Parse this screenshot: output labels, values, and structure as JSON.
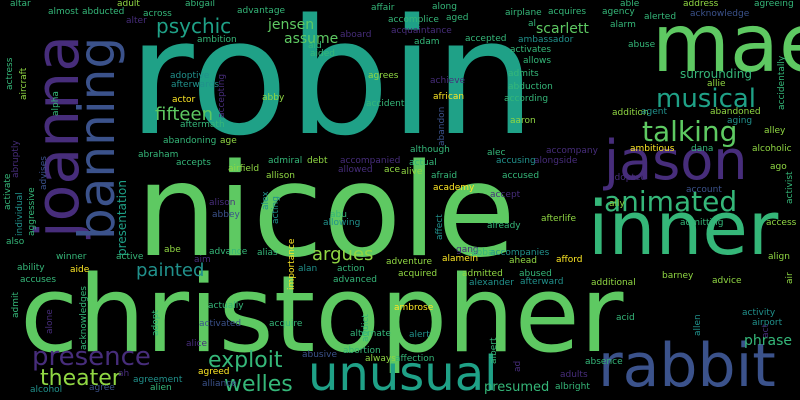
{
  "palette": {
    "c1": "#1fa187",
    "c2": "#35b779",
    "c3": "#5ec962",
    "c4": "#440154",
    "c5": "#3b528b",
    "c6": "#2c728e",
    "c7": "#21918c",
    "c8": "#fde725",
    "c9": "#90d743",
    "c10": "#472d7b"
  },
  "words": [
    {
      "id": "robin",
      "text": "robin",
      "color": "#1fa187"
    },
    {
      "id": "nicole",
      "text": "nicole",
      "color": "#5ec962"
    },
    {
      "id": "christopher",
      "text": "christopher",
      "color": "#5ec962"
    },
    {
      "id": "mae",
      "text": "mae",
      "color": "#5ec962"
    },
    {
      "id": "inner",
      "text": "inner",
      "color": "#35b779"
    },
    {
      "id": "joanna",
      "text": "joanna",
      "color": "#472d7b"
    },
    {
      "id": "banning",
      "text": "banning",
      "color": "#3b528b"
    },
    {
      "id": "jason",
      "text": "jason",
      "color": "#472d7b"
    },
    {
      "id": "rabbit",
      "text": "rabbit",
      "color": "#3b528b"
    },
    {
      "id": "unusual",
      "text": "unusual",
      "color": "#1fa187"
    },
    {
      "id": "animated",
      "text": "animated",
      "color": "#35b779"
    },
    {
      "id": "talking",
      "text": "talking",
      "color": "#5ec962"
    },
    {
      "id": "musical",
      "text": "musical",
      "color": "#1fa187"
    },
    {
      "id": "presence",
      "text": "presence",
      "color": "#472d7b"
    },
    {
      "id": "exploit",
      "text": "exploit",
      "color": "#35b779"
    },
    {
      "id": "theater",
      "text": "theater",
      "color": "#90d743"
    },
    {
      "id": "welles",
      "text": "welles",
      "color": "#35b779"
    },
    {
      "id": "painted",
      "text": "painted",
      "color": "#21918c"
    },
    {
      "id": "argues",
      "text": "argues",
      "color": "#90d743"
    },
    {
      "id": "fifteen",
      "text": "fifteen",
      "color": "#5ec962"
    },
    {
      "id": "psychic",
      "text": "psychic",
      "color": "#1fa187"
    },
    {
      "id": "scarlett",
      "text": "scarlett",
      "color": "#5ec962"
    },
    {
      "id": "jensen",
      "text": "jensen",
      "color": "#5ec962"
    },
    {
      "id": "assume",
      "text": "assume",
      "color": "#5ec962"
    },
    {
      "id": "surrounding",
      "text": "surrounding",
      "color": "#35b779"
    },
    {
      "id": "phrase",
      "text": "phrase",
      "color": "#35b779"
    },
    {
      "id": "presumed",
      "text": "presumed",
      "color": "#35b779"
    },
    {
      "id": "presentation",
      "text": "presentation",
      "color": "#1fa187"
    },
    {
      "id": "abduction",
      "text": "abduction",
      "color": "#35b779"
    },
    {
      "id": "according",
      "text": "according",
      "color": "#35b779"
    },
    {
      "id": "accident",
      "text": "accident",
      "color": "#35b779"
    },
    {
      "id": "african",
      "text": "african",
      "color": "#fde725"
    },
    {
      "id": "addition",
      "text": "addition",
      "color": "#90d743"
    },
    {
      "id": "actor",
      "text": "actor",
      "color": "#fde725"
    },
    {
      "id": "abby",
      "text": "abby",
      "color": "#90d743"
    },
    {
      "id": "aaron",
      "text": "aaron",
      "color": "#90d743"
    },
    {
      "id": "accused",
      "text": "accused",
      "color": "#35b779"
    },
    {
      "id": "adopted",
      "text": "adopted",
      "color": "#472d7b"
    },
    {
      "id": "ambitious",
      "text": "ambitious",
      "color": "#fde725"
    },
    {
      "id": "accidentally",
      "text": "accidentally",
      "color": "#35b779"
    },
    {
      "id": "alcoholic",
      "text": "alcoholic",
      "color": "#90d743"
    },
    {
      "id": "alley",
      "text": "alley",
      "color": "#90d743"
    },
    {
      "id": "activist",
      "text": "activist",
      "color": "#35b779"
    },
    {
      "id": "ago",
      "text": "ago",
      "color": "#90d743"
    },
    {
      "id": "access",
      "text": "access",
      "color": "#90d743"
    },
    {
      "id": "align",
      "text": "align",
      "color": "#90d743"
    },
    {
      "id": "air",
      "text": "air",
      "color": "#90d743"
    },
    {
      "id": "advice",
      "text": "advice",
      "color": "#90d743"
    },
    {
      "id": "barney",
      "text": "barney",
      "color": "#90d743"
    },
    {
      "id": "activity",
      "text": "activity",
      "color": "#21918c"
    },
    {
      "id": "airport",
      "text": "airport",
      "color": "#21918c"
    },
    {
      "id": "allen",
      "text": "allen",
      "color": "#21918c"
    },
    {
      "id": "acid",
      "text": "acid",
      "color": "#35b779"
    },
    {
      "id": "additional",
      "text": "additional",
      "color": "#90d743"
    },
    {
      "id": "afford",
      "text": "afford",
      "color": "#fde725"
    },
    {
      "id": "admitted",
      "text": "admitted",
      "color": "#90d743"
    },
    {
      "id": "alamein",
      "text": "alamein",
      "color": "#fde725"
    },
    {
      "id": "ahead",
      "text": "ahead",
      "color": "#90d743"
    },
    {
      "id": "abused",
      "text": "abused",
      "color": "#35b779"
    },
    {
      "id": "accompanies",
      "text": "accompanies",
      "color": "#21918c"
    },
    {
      "id": "afterward",
      "text": "afterward",
      "color": "#21918c"
    },
    {
      "id": "alexander",
      "text": "alexander",
      "color": "#21918c"
    },
    {
      "id": "acquired",
      "text": "acquired",
      "color": "#90d743"
    },
    {
      "id": "adventure",
      "text": "adventure",
      "color": "#90d743"
    },
    {
      "id": "advanced",
      "text": "advanced",
      "color": "#35b779"
    },
    {
      "id": "action",
      "text": "action",
      "color": "#35b779"
    },
    {
      "id": "alan",
      "text": "alan",
      "color": "#21918c"
    },
    {
      "id": "ambrose",
      "text": "ambrose",
      "color": "#fde725"
    },
    {
      "id": "acquire",
      "text": "acquire",
      "color": "#35b779"
    },
    {
      "id": "activated",
      "text": "activated",
      "color": "#3b528b"
    },
    {
      "id": "alliance",
      "text": "alliance",
      "color": "#3b528b"
    },
    {
      "id": "alert",
      "text": "alert",
      "color": "#21918c"
    },
    {
      "id": "affection",
      "text": "affection",
      "color": "#35b779"
    },
    {
      "id": "abortion",
      "text": "abortion",
      "color": "#35b779"
    },
    {
      "id": "always",
      "text": "always",
      "color": "#90d743"
    },
    {
      "id": "abusive",
      "text": "abusive",
      "color": "#3b528b"
    },
    {
      "id": "agreed",
      "text": "agreed",
      "color": "#fde725"
    },
    {
      "id": "agreement",
      "text": "agreement",
      "color": "#21918c"
    },
    {
      "id": "alien",
      "text": "alien",
      "color": "#35b779"
    },
    {
      "id": "alcohol",
      "text": "alcohol",
      "color": "#21918c"
    },
    {
      "id": "agree",
      "text": "agree",
      "color": "#3b528b"
    },
    {
      "id": "alice",
      "text": "alice",
      "color": "#472d7b"
    },
    {
      "id": "albright",
      "text": "albright",
      "color": "#35b779"
    },
    {
      "id": "absence",
      "text": "absence",
      "color": "#35b779"
    },
    {
      "id": "adults",
      "text": "adults",
      "color": "#472d7b"
    },
    {
      "id": "actually",
      "text": "actually",
      "color": "#35b779"
    },
    {
      "id": "aide",
      "text": "aide",
      "color": "#fde725"
    },
    {
      "id": "accuses",
      "text": "accuses",
      "color": "#35b779"
    },
    {
      "id": "ability",
      "text": "ability",
      "color": "#35b779"
    },
    {
      "id": "winner",
      "text": "winner",
      "color": "#35b779"
    },
    {
      "id": "active",
      "text": "active",
      "color": "#35b779"
    },
    {
      "id": "abe",
      "text": "abe",
      "color": "#90d743"
    },
    {
      "id": "advance",
      "text": "advance",
      "color": "#35b779"
    },
    {
      "id": "alias",
      "text": "alias",
      "color": "#35b779"
    },
    {
      "id": "allowing",
      "text": "allowing",
      "color": "#21918c"
    },
    {
      "id": "abu",
      "text": "abu",
      "color": "#35b779"
    },
    {
      "id": "alison",
      "text": "alison",
      "color": "#472d7b"
    },
    {
      "id": "abbey",
      "text": "abbey",
      "color": "#3b528b"
    },
    {
      "id": "airfield",
      "text": "airfield",
      "color": "#90d743"
    },
    {
      "id": "allison",
      "text": "allison",
      "color": "#90d743"
    },
    {
      "id": "accepts",
      "text": "accepts",
      "color": "#35b779"
    },
    {
      "id": "abraham",
      "text": "abraham",
      "color": "#35b779"
    },
    {
      "id": "admiral",
      "text": "admiral",
      "color": "#35b779"
    },
    {
      "id": "debt",
      "text": "debt",
      "color": "#90d743"
    },
    {
      "id": "accompanied",
      "text": "accompanied",
      "color": "#472d7b"
    },
    {
      "id": "allowed",
      "text": "allowed",
      "color": "#472d7b"
    },
    {
      "id": "ace",
      "text": "ace",
      "color": "#90d743"
    },
    {
      "id": "alive",
      "text": "alive",
      "color": "#90d743"
    },
    {
      "id": "afraid",
      "text": "afraid",
      "color": "#35b779"
    },
    {
      "id": "academy",
      "text": "academy",
      "color": "#fde725"
    },
    {
      "id": "actual",
      "text": "actual",
      "color": "#35b779"
    },
    {
      "id": "although",
      "text": "although",
      "color": "#35b779"
    },
    {
      "id": "alec",
      "text": "alec",
      "color": "#35b779"
    },
    {
      "id": "accusing",
      "text": "accusing",
      "color": "#21918c"
    },
    {
      "id": "alongside",
      "text": "alongside",
      "color": "#472d7b"
    },
    {
      "id": "accompany",
      "text": "accompany",
      "color": "#472d7b"
    },
    {
      "id": "accept",
      "text": "accept",
      "color": "#472d7b"
    },
    {
      "id": "already",
      "text": "already",
      "color": "#35b779"
    },
    {
      "id": "afterlife",
      "text": "afterlife",
      "color": "#90d743"
    },
    {
      "id": "ally",
      "text": "ally",
      "color": "#90d743"
    },
    {
      "id": "account",
      "text": "account",
      "color": "#3b528b"
    },
    {
      "id": "admitting",
      "text": "admitting",
      "color": "#35b779"
    },
    {
      "id": "dana",
      "text": "dana",
      "color": "#35b779"
    },
    {
      "id": "age",
      "text": "age",
      "color": "#90d743"
    },
    {
      "id": "abandoning",
      "text": "abandoning",
      "color": "#35b779"
    },
    {
      "id": "aftermath",
      "text": "aftermath",
      "color": "#35b779"
    },
    {
      "id": "adoptive",
      "text": "adoptive",
      "color": "#21918c"
    },
    {
      "id": "afterwards",
      "text": "afterwards",
      "color": "#21918c"
    },
    {
      "id": "agrees",
      "text": "agrees",
      "color": "#90d743"
    },
    {
      "id": "aided",
      "text": "aided",
      "color": "#35b779"
    },
    {
      "id": "achieve",
      "text": "achieve",
      "color": "#472d7b"
    },
    {
      "id": "accepted",
      "text": "accepted",
      "color": "#35b779"
    },
    {
      "id": "activates",
      "text": "activates",
      "color": "#35b779"
    },
    {
      "id": "allows",
      "text": "allows",
      "color": "#35b779"
    },
    {
      "id": "admits",
      "text": "admits",
      "color": "#35b779"
    },
    {
      "id": "ambassador",
      "text": "ambassador",
      "color": "#21918c"
    },
    {
      "id": "adam",
      "text": "adam",
      "color": "#35b779"
    },
    {
      "id": "acquaintance",
      "text": "acquaintance",
      "color": "#472d7b"
    },
    {
      "id": "aboard",
      "text": "aboard",
      "color": "#472d7b"
    },
    {
      "id": "aid",
      "text": "aid",
      "color": "#35b779"
    },
    {
      "id": "ambition",
      "text": "ambition",
      "color": "#35b779"
    },
    {
      "id": "alter",
      "text": "alter",
      "color": "#472d7b"
    },
    {
      "id": "across",
      "text": "across",
      "color": "#35b779"
    },
    {
      "id": "abigail",
      "text": "abigail",
      "color": "#35b779"
    },
    {
      "id": "advantage",
      "text": "advantage",
      "color": "#35b779"
    },
    {
      "id": "affair",
      "text": "affair",
      "color": "#35b779"
    },
    {
      "id": "along",
      "text": "along",
      "color": "#35b779"
    },
    {
      "id": "airplane",
      "text": "airplane",
      "color": "#35b779"
    },
    {
      "id": "able",
      "text": "able",
      "color": "#35b779"
    },
    {
      "id": "address",
      "text": "address",
      "color": "#90d743"
    },
    {
      "id": "agreeing",
      "text": "agreeing",
      "color": "#35b779"
    },
    {
      "id": "acknowledge",
      "text": "acknowledge",
      "color": "#3b528b"
    },
    {
      "id": "alerted",
      "text": "alerted",
      "color": "#35b779"
    },
    {
      "id": "agency",
      "text": "agency",
      "color": "#35b779"
    },
    {
      "id": "acquires",
      "text": "acquires",
      "color": "#35b779"
    },
    {
      "id": "alarm",
      "text": "alarm",
      "color": "#35b779"
    },
    {
      "id": "abuse",
      "text": "abuse",
      "color": "#35b779"
    },
    {
      "id": "allie",
      "text": "allie",
      "color": "#90d743"
    },
    {
      "id": "agent",
      "text": "agent",
      "color": "#21918c"
    },
    {
      "id": "abandoned",
      "text": "abandoned",
      "color": "#90d743"
    },
    {
      "id": "aging",
      "text": "aging",
      "color": "#21918c"
    },
    {
      "id": "accomplice",
      "text": "accomplice",
      "color": "#35b779"
    },
    {
      "id": "aged",
      "text": "aged",
      "color": "#35b779"
    },
    {
      "id": "al",
      "text": "al",
      "color": "#35b779"
    },
    {
      "id": "altar",
      "text": "altar",
      "color": "#35b779"
    },
    {
      "id": "almost",
      "text": "almost",
      "color": "#35b779"
    },
    {
      "id": "abducted",
      "text": "abducted",
      "color": "#35b779"
    },
    {
      "id": "adult",
      "text": "adult",
      "color": "#90d743"
    },
    {
      "id": "aircraft",
      "text": "aircraft",
      "color": "#90d743"
    },
    {
      "id": "actress",
      "text": "actress",
      "color": "#35b779"
    },
    {
      "id": "abruptly",
      "text": "abruptly",
      "color": "#472d7b"
    },
    {
      "id": "advises",
      "text": "advises",
      "color": "#3b528b"
    },
    {
      "id": "alpha",
      "text": "alpha",
      "color": "#35b779"
    },
    {
      "id": "accepting",
      "text": "accepting",
      "color": "#472d7b"
    },
    {
      "id": "acting",
      "text": "acting",
      "color": "#21918c"
    },
    {
      "id": "alex",
      "text": "alex",
      "color": "#21918c"
    },
    {
      "id": "importance",
      "text": "importance",
      "color": "#fde725"
    },
    {
      "id": "aim",
      "text": "aim",
      "color": "#472d7b"
    },
    {
      "id": "activate",
      "text": "activate",
      "color": "#35b779"
    },
    {
      "id": "individual",
      "text": "individual",
      "color": "#21918c"
    },
    {
      "id": "aggressive",
      "text": "aggressive",
      "color": "#35b779"
    },
    {
      "id": "also",
      "text": "also",
      "color": "#35b779"
    },
    {
      "id": "admit",
      "text": "admit",
      "color": "#35b779"
    },
    {
      "id": "alone",
      "text": "alone",
      "color": "#472d7b"
    },
    {
      "id": "acknowledges",
      "text": "acknowledges",
      "color": "#35b779"
    },
    {
      "id": "ah",
      "text": "ah",
      "color": "#472d7b"
    },
    {
      "id": "adopt",
      "text": "adopt",
      "color": "#35b779"
    },
    {
      "id": "alternate",
      "text": "alternate",
      "color": "#35b779"
    },
    {
      "id": "addict",
      "text": "addict",
      "color": "#35b779"
    },
    {
      "id": "affect",
      "text": "affect",
      "color": "#21918c"
    },
    {
      "id": "abandon",
      "text": "abandon",
      "color": "#3b528b"
    },
    {
      "id": "albert",
      "text": "albert",
      "color": "#35b779"
    },
    {
      "id": "ad",
      "text": "ad",
      "color": "#472d7b"
    },
    {
      "id": "act",
      "text": "act",
      "color": "#472d7b"
    },
    {
      "id": "gang",
      "text": "gang",
      "color": "#472d7b"
    },
    {
      "id": "abba",
      "text": "abba",
      "color": "#35b779"
    }
  ]
}
